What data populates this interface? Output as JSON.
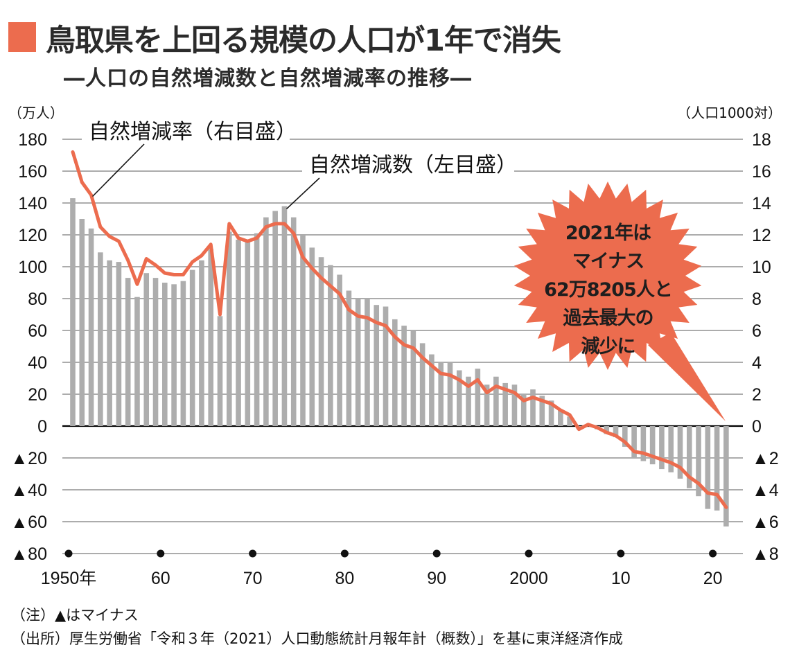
{
  "header": {
    "title": "鳥取県を上回る規模の人口が1年で消失",
    "subtitle": "―人口の自然増減数と自然増減率の推移―",
    "accent_color": "#EC6C4E"
  },
  "callout": {
    "lines": [
      "2021年は",
      "マイナス",
      "62万8205人と",
      "過去最大の",
      "減少に"
    ],
    "color": "#EC6C4E"
  },
  "notes": {
    "note": "（注）▲はマイナス",
    "source": "（出所）厚生労働省「令和３年（2021）人口動態統計月報年計（概数）」を基に東洋経済作成"
  },
  "chart_data": {
    "type": "bar",
    "title": "人口の自然増減数と自然増減率の推移",
    "left_axis": {
      "unit_label": "（万人）",
      "ylim": [
        -80,
        180
      ],
      "ticks": [
        180,
        160,
        140,
        120,
        100,
        80,
        60,
        40,
        20,
        0,
        -20,
        -40,
        -60,
        -80
      ],
      "tick_labels": [
        "180",
        "160",
        "140",
        "120",
        "100",
        "80",
        "60",
        "40",
        "20",
        "0",
        "▲20",
        "▲40",
        "▲60",
        "▲80"
      ]
    },
    "right_axis": {
      "unit_label": "（人口1000対）",
      "ylim": [
        -8,
        18
      ],
      "ticks": [
        18,
        16,
        14,
        12,
        10,
        8,
        6,
        4,
        2,
        0,
        -2,
        -4,
        -6,
        -8
      ],
      "tick_labels": [
        "18",
        "16",
        "14",
        "12",
        "10",
        "8",
        "6",
        "4",
        "2",
        "0",
        "▲2",
        "▲4",
        "▲6",
        "▲8"
      ]
    },
    "x_ticks": [
      1950,
      1960,
      1970,
      1980,
      1990,
      2000,
      2010,
      2020
    ],
    "x_tick_labels": [
      "1950年",
      "60",
      "70",
      "80",
      "90",
      "2000",
      "10",
      "20"
    ],
    "grid": true,
    "x": [
      1950,
      1951,
      1952,
      1953,
      1954,
      1955,
      1956,
      1957,
      1958,
      1959,
      1960,
      1961,
      1962,
      1963,
      1964,
      1965,
      1966,
      1967,
      1968,
      1969,
      1970,
      1971,
      1972,
      1973,
      1974,
      1975,
      1976,
      1977,
      1978,
      1979,
      1980,
      1981,
      1982,
      1983,
      1984,
      1985,
      1986,
      1987,
      1988,
      1989,
      1990,
      1991,
      1992,
      1993,
      1994,
      1995,
      1996,
      1997,
      1998,
      1999,
      2000,
      2001,
      2002,
      2003,
      2004,
      2005,
      2006,
      2007,
      2008,
      2009,
      2010,
      2011,
      2012,
      2013,
      2014,
      2015,
      2016,
      2017,
      2018,
      2019,
      2020,
      2021
    ],
    "series": [
      {
        "name": "自然増減数（左目盛）",
        "type": "bar",
        "axis": "left",
        "color": "#ADADAD",
        "values": [
          143,
          130,
          124,
          109,
          104,
          103,
          93,
          81,
          96,
          93,
          90,
          89,
          91,
          98,
          104,
          111,
          69,
          122,
          117,
          117,
          121,
          131,
          135,
          138,
          131,
          120,
          112,
          106,
          101,
          95,
          85,
          80,
          80,
          76,
          75,
          67,
          63,
          60,
          52,
          45,
          40,
          40,
          35,
          31,
          36,
          26,
          31,
          27,
          26,
          20,
          23,
          19,
          16,
          10,
          6,
          -2,
          1,
          -2,
          -5,
          -7,
          -13,
          -20,
          -22,
          -24,
          -27,
          -29,
          -33,
          -39,
          -44,
          -52,
          -53,
          -63
        ]
      },
      {
        "name": "自然増減率（右目盛）",
        "type": "line",
        "axis": "right",
        "color": "#EC6C4E",
        "values": [
          17.2,
          15.3,
          14.5,
          12.5,
          11.9,
          11.6,
          10.4,
          8.9,
          10.5,
          10.1,
          9.6,
          9.5,
          9.5,
          10.3,
          10.7,
          11.4,
          7.0,
          12.7,
          11.8,
          11.6,
          11.8,
          12.5,
          12.7,
          12.7,
          12.1,
          10.6,
          9.9,
          9.3,
          8.8,
          8.3,
          7.3,
          6.9,
          6.8,
          6.5,
          6.3,
          5.6,
          5.1,
          4.9,
          4.3,
          3.8,
          3.3,
          3.2,
          2.9,
          2.5,
          2.9,
          2.1,
          2.5,
          2.3,
          2.1,
          1.6,
          1.8,
          1.6,
          1.4,
          1.0,
          0.7,
          -0.2,
          0.1,
          -0.1,
          -0.4,
          -0.6,
          -1.0,
          -1.6,
          -1.7,
          -1.9,
          -2.1,
          -2.3,
          -2.6,
          -3.2,
          -3.6,
          -4.2,
          -4.3,
          -5.1
        ]
      }
    ],
    "annotations": [
      {
        "text": "自然増減率（右目盛）",
        "target_series": "自然増減率（右目盛）",
        "target_x": 1952
      },
      {
        "text": "自然増減数（左目盛）",
        "target_series": "自然増減数（左目盛）",
        "target_x": 1973
      }
    ]
  }
}
